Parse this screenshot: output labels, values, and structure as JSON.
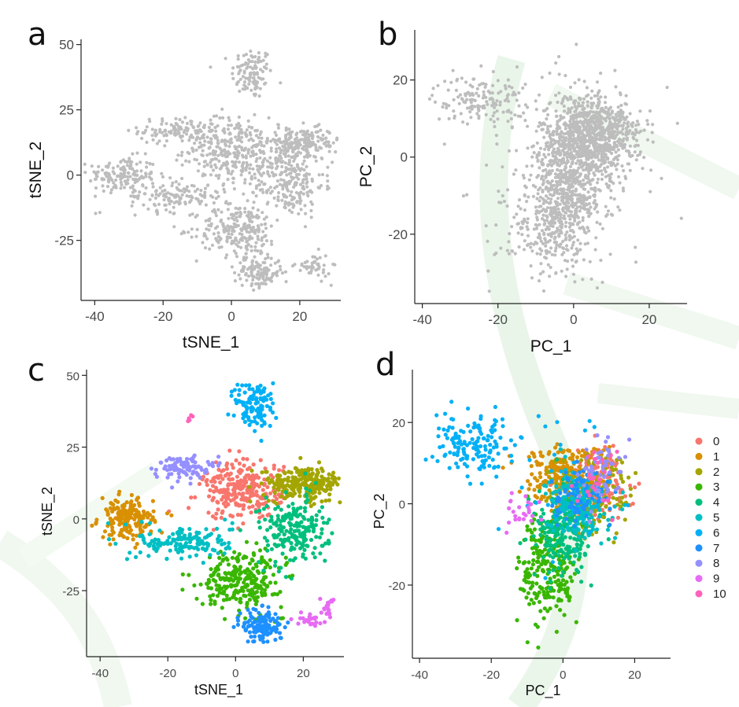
{
  "colors": {
    "gray_points": "#bdbdbd",
    "watermark": "#e4f3e4",
    "clusters": [
      "#f8766d",
      "#d89000",
      "#a3a500",
      "#39b600",
      "#00bf7d",
      "#00bfc4",
      "#00b0f6",
      "#1e90ff",
      "#9590ff",
      "#e76bf3",
      "#ff62bc"
    ]
  },
  "chart_data": [
    {
      "panel": "a",
      "type": "scatter",
      "xlabel": "tSNE_1",
      "ylabel": "tSNE_2",
      "xlim": [
        -44,
        32
      ],
      "ylim": [
        -48,
        52
      ],
      "xticks": [
        -40,
        -20,
        0,
        20
      ],
      "yticks": [
        -25,
        0,
        25,
        50
      ],
      "grid": false,
      "color": "gray",
      "point_size": "small",
      "groups": [
        {
          "cx": 6,
          "cy": 39,
          "sx": 3,
          "sy": 5,
          "n": 110
        },
        {
          "cx": -32,
          "cy": 0,
          "sx": 5,
          "sy": 3.5,
          "n": 150
        },
        {
          "cx": -15,
          "cy": 17,
          "sx": 6,
          "sy": 2.5,
          "n": 110
        },
        {
          "cx": -2,
          "cy": 10,
          "sx": 6,
          "sy": 6,
          "n": 220
        },
        {
          "cx": 20,
          "cy": 12,
          "sx": 6,
          "sy": 3,
          "n": 200
        },
        {
          "cx": 17,
          "cy": -4,
          "sx": 5,
          "sy": 6,
          "n": 180
        },
        {
          "cx": 2,
          "cy": -21,
          "sx": 6,
          "sy": 5,
          "n": 230
        },
        {
          "cx": -16,
          "cy": -8,
          "sx": 7,
          "sy": 3,
          "n": 130
        },
        {
          "cx": 8,
          "cy": -37,
          "sx": 3.5,
          "sy": 3,
          "n": 130
        },
        {
          "cx": 24,
          "cy": -35,
          "sx": 2.5,
          "sy": 2.5,
          "n": 45
        },
        {
          "cx": 9,
          "cy": 5,
          "sx": 8,
          "sy": 6,
          "n": 150
        }
      ]
    },
    {
      "panel": "b",
      "type": "scatter",
      "xlabel": "PC_1",
      "ylabel": "PC_2",
      "xlim": [
        -42,
        30
      ],
      "ylim": [
        -38,
        33
      ],
      "xticks": [
        -40,
        -20,
        0,
        20
      ],
      "yticks": [
        -20,
        0,
        20
      ],
      "grid": false,
      "color": "gray",
      "point_size": "small",
      "groups": [
        {
          "cx": -25,
          "cy": 15,
          "sx": 6,
          "sy": 3,
          "n": 150
        },
        {
          "cx": 3,
          "cy": 5,
          "sx": 6,
          "sy": 6,
          "n": 650
        },
        {
          "cx": -2,
          "cy": -10,
          "sx": 5,
          "sy": 7,
          "n": 600
        },
        {
          "cx": 8,
          "cy": 6,
          "sx": 5,
          "sy": 4,
          "n": 300
        },
        {
          "cx": -8,
          "cy": -20,
          "sx": 6,
          "sy": 6,
          "n": 150
        },
        {
          "cx": 0,
          "cy": 0,
          "sx": 14,
          "sy": 14,
          "n": 100
        }
      ]
    },
    {
      "panel": "c",
      "type": "scatter",
      "xlabel": "tSNE_1",
      "ylabel": "tSNE_2",
      "xlim": [
        -44,
        32
      ],
      "ylim": [
        -48,
        52
      ],
      "xticks": [
        -40,
        -20,
        0,
        20
      ],
      "yticks": [
        -25,
        0,
        25,
        50
      ],
      "grid": false,
      "point_size": "medium",
      "clusters": [
        {
          "id": "0",
          "groups": [
            {
              "cx": 2,
              "cy": 10,
              "sx": 6,
              "sy": 5,
              "n": 260
            }
          ]
        },
        {
          "id": "1",
          "groups": [
            {
              "cx": -32,
              "cy": 0,
              "sx": 4,
              "sy": 3.5,
              "n": 180
            }
          ]
        },
        {
          "id": "2",
          "groups": [
            {
              "cx": 20,
              "cy": 12,
              "sx": 6,
              "sy": 3,
              "n": 240
            }
          ]
        },
        {
          "id": "3",
          "groups": [
            {
              "cx": 2,
              "cy": -21,
              "sx": 6,
              "sy": 5,
              "n": 250
            }
          ]
        },
        {
          "id": "4",
          "groups": [
            {
              "cx": 17,
              "cy": -4,
              "sx": 5,
              "sy": 6,
              "n": 200
            }
          ]
        },
        {
          "id": "5",
          "groups": [
            {
              "cx": -15,
              "cy": -8,
              "sx": 7,
              "sy": 3,
              "n": 150
            }
          ]
        },
        {
          "id": "6",
          "groups": [
            {
              "cx": 6,
              "cy": 39,
              "sx": 3,
              "sy": 5,
              "n": 110
            }
          ]
        },
        {
          "id": "7",
          "groups": [
            {
              "cx": 8,
              "cy": -37,
              "sx": 3,
              "sy": 3,
              "n": 130
            }
          ]
        },
        {
          "id": "8",
          "groups": [
            {
              "cx": -16,
              "cy": 18,
              "sx": 4,
              "sy": 2,
              "n": 90
            }
          ]
        },
        {
          "id": "9",
          "groups": [
            {
              "cx": 22,
              "cy": -35,
              "sx": 2,
              "sy": 1,
              "n": 25
            },
            {
              "cx": 27,
              "cy": -30,
              "sx": 1,
              "sy": 2,
              "n": 20
            }
          ]
        },
        {
          "id": "10",
          "groups": [
            {
              "cx": -13,
              "cy": 35,
              "sx": 0.7,
              "sy": 0.7,
              "n": 5
            }
          ]
        }
      ]
    },
    {
      "panel": "d",
      "type": "scatter",
      "xlabel": "PC_1",
      "ylabel": "PC_2",
      "xlim": [
        -42,
        30
      ],
      "ylim": [
        -38,
        33
      ],
      "xticks": [
        -40,
        -20,
        0,
        20
      ],
      "yticks": [
        -20,
        0,
        20
      ],
      "grid": false,
      "point_size": "medium",
      "legend": {
        "position": "right",
        "labels": [
          "0",
          "1",
          "2",
          "3",
          "4",
          "5",
          "6",
          "7",
          "8",
          "9",
          "10"
        ]
      },
      "clusters": [
        {
          "id": "0",
          "groups": [
            {
              "cx": 8,
              "cy": 5,
              "sx": 5,
              "sy": 4,
              "n": 170
            }
          ]
        },
        {
          "id": "1",
          "groups": [
            {
              "cx": 0,
              "cy": 7,
              "sx": 6,
              "sy": 4,
              "n": 220
            }
          ]
        },
        {
          "id": "2",
          "groups": [
            {
              "cx": 8,
              "cy": 2,
              "sx": 6,
              "sy": 5,
              "n": 160
            }
          ]
        },
        {
          "id": "3",
          "groups": [
            {
              "cx": -4,
              "cy": -16,
              "sx": 4,
              "sy": 7,
              "n": 220
            }
          ]
        },
        {
          "id": "4",
          "groups": [
            {
              "cx": 0,
              "cy": -8,
              "sx": 4,
              "sy": 5,
              "n": 200
            }
          ]
        },
        {
          "id": "5",
          "groups": [
            {
              "cx": 4,
              "cy": 0,
              "sx": 4,
              "sy": 4,
              "n": 220
            }
          ]
        },
        {
          "id": "6",
          "groups": [
            {
              "cx": -25,
              "cy": 14,
              "sx": 5,
              "sy": 3.5,
              "n": 140
            },
            {
              "cx": -5,
              "cy": 5,
              "sx": 12,
              "sy": 10,
              "n": 40
            }
          ]
        },
        {
          "id": "7",
          "groups": [
            {
              "cx": 5,
              "cy": 2,
              "sx": 4,
              "sy": 4,
              "n": 90
            }
          ]
        },
        {
          "id": "8",
          "groups": [
            {
              "cx": 10,
              "cy": 8,
              "sx": 3,
              "sy": 4,
              "n": 60
            }
          ]
        },
        {
          "id": "9",
          "groups": [
            {
              "cx": -10,
              "cy": -2,
              "sx": 3,
              "sy": 2,
              "n": 25
            }
          ]
        },
        {
          "id": "10",
          "groups": [
            {
              "cx": 9,
              "cy": 5,
              "sx": 3,
              "sy": 4,
              "n": 25
            }
          ]
        }
      ]
    }
  ]
}
